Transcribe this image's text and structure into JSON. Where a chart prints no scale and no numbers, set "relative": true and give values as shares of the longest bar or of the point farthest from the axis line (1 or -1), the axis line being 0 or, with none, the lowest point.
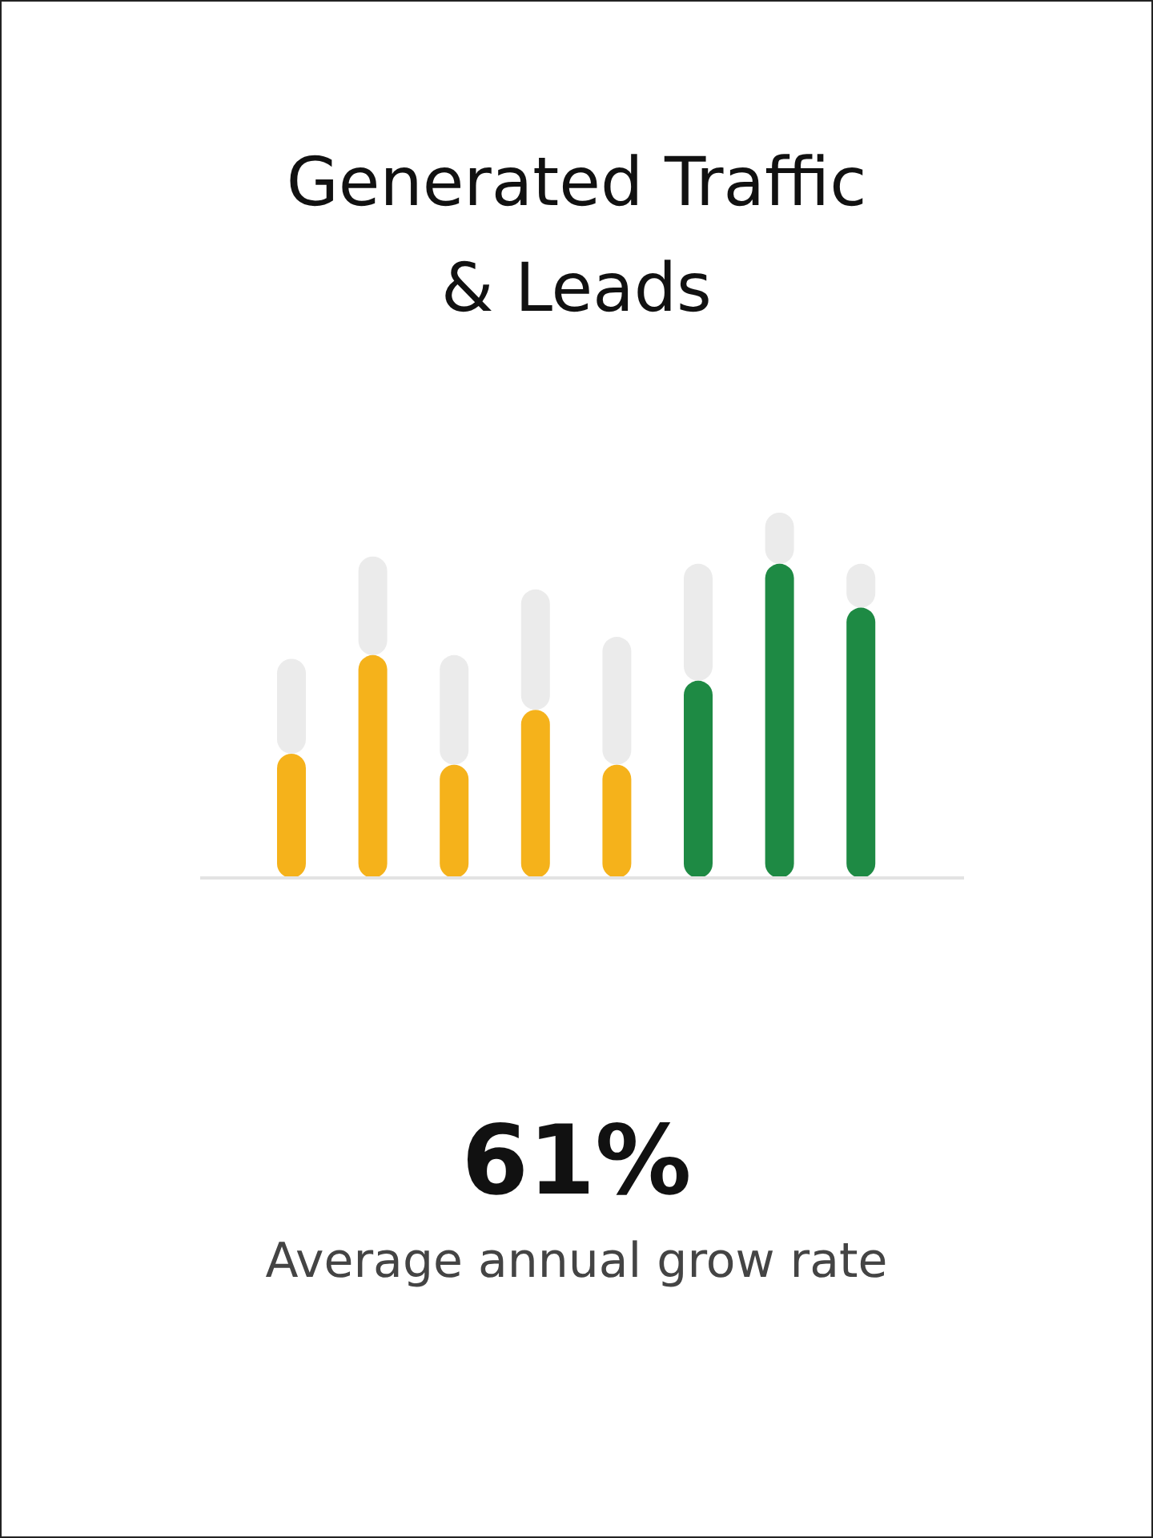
{
  "chart_data": {
    "type": "bar",
    "title": "Generated Traffic & Leads",
    "relative": true,
    "stacked": true,
    "categories": [
      null,
      null,
      null,
      null,
      null,
      null,
      null,
      null
    ],
    "series": [
      {
        "colors": [
          "#f5b21b",
          "#f5b21b",
          "#f5b21b",
          "#f5b21b",
          "#f5b21b",
          "#1e8a44",
          "#1e8a44",
          "#1e8a44"
        ],
        "values": [
          0.34,
          0.61,
          0.31,
          0.46,
          0.31,
          0.54,
          0.86,
          0.74
        ]
      },
      {
        "color": "#ebebeb",
        "values": [
          0.26,
          0.27,
          0.3,
          0.33,
          0.35,
          0.32,
          0.14,
          0.12
        ]
      }
    ],
    "annotations": [
      "61%",
      "Average annual grow rate"
    ]
  }
}
